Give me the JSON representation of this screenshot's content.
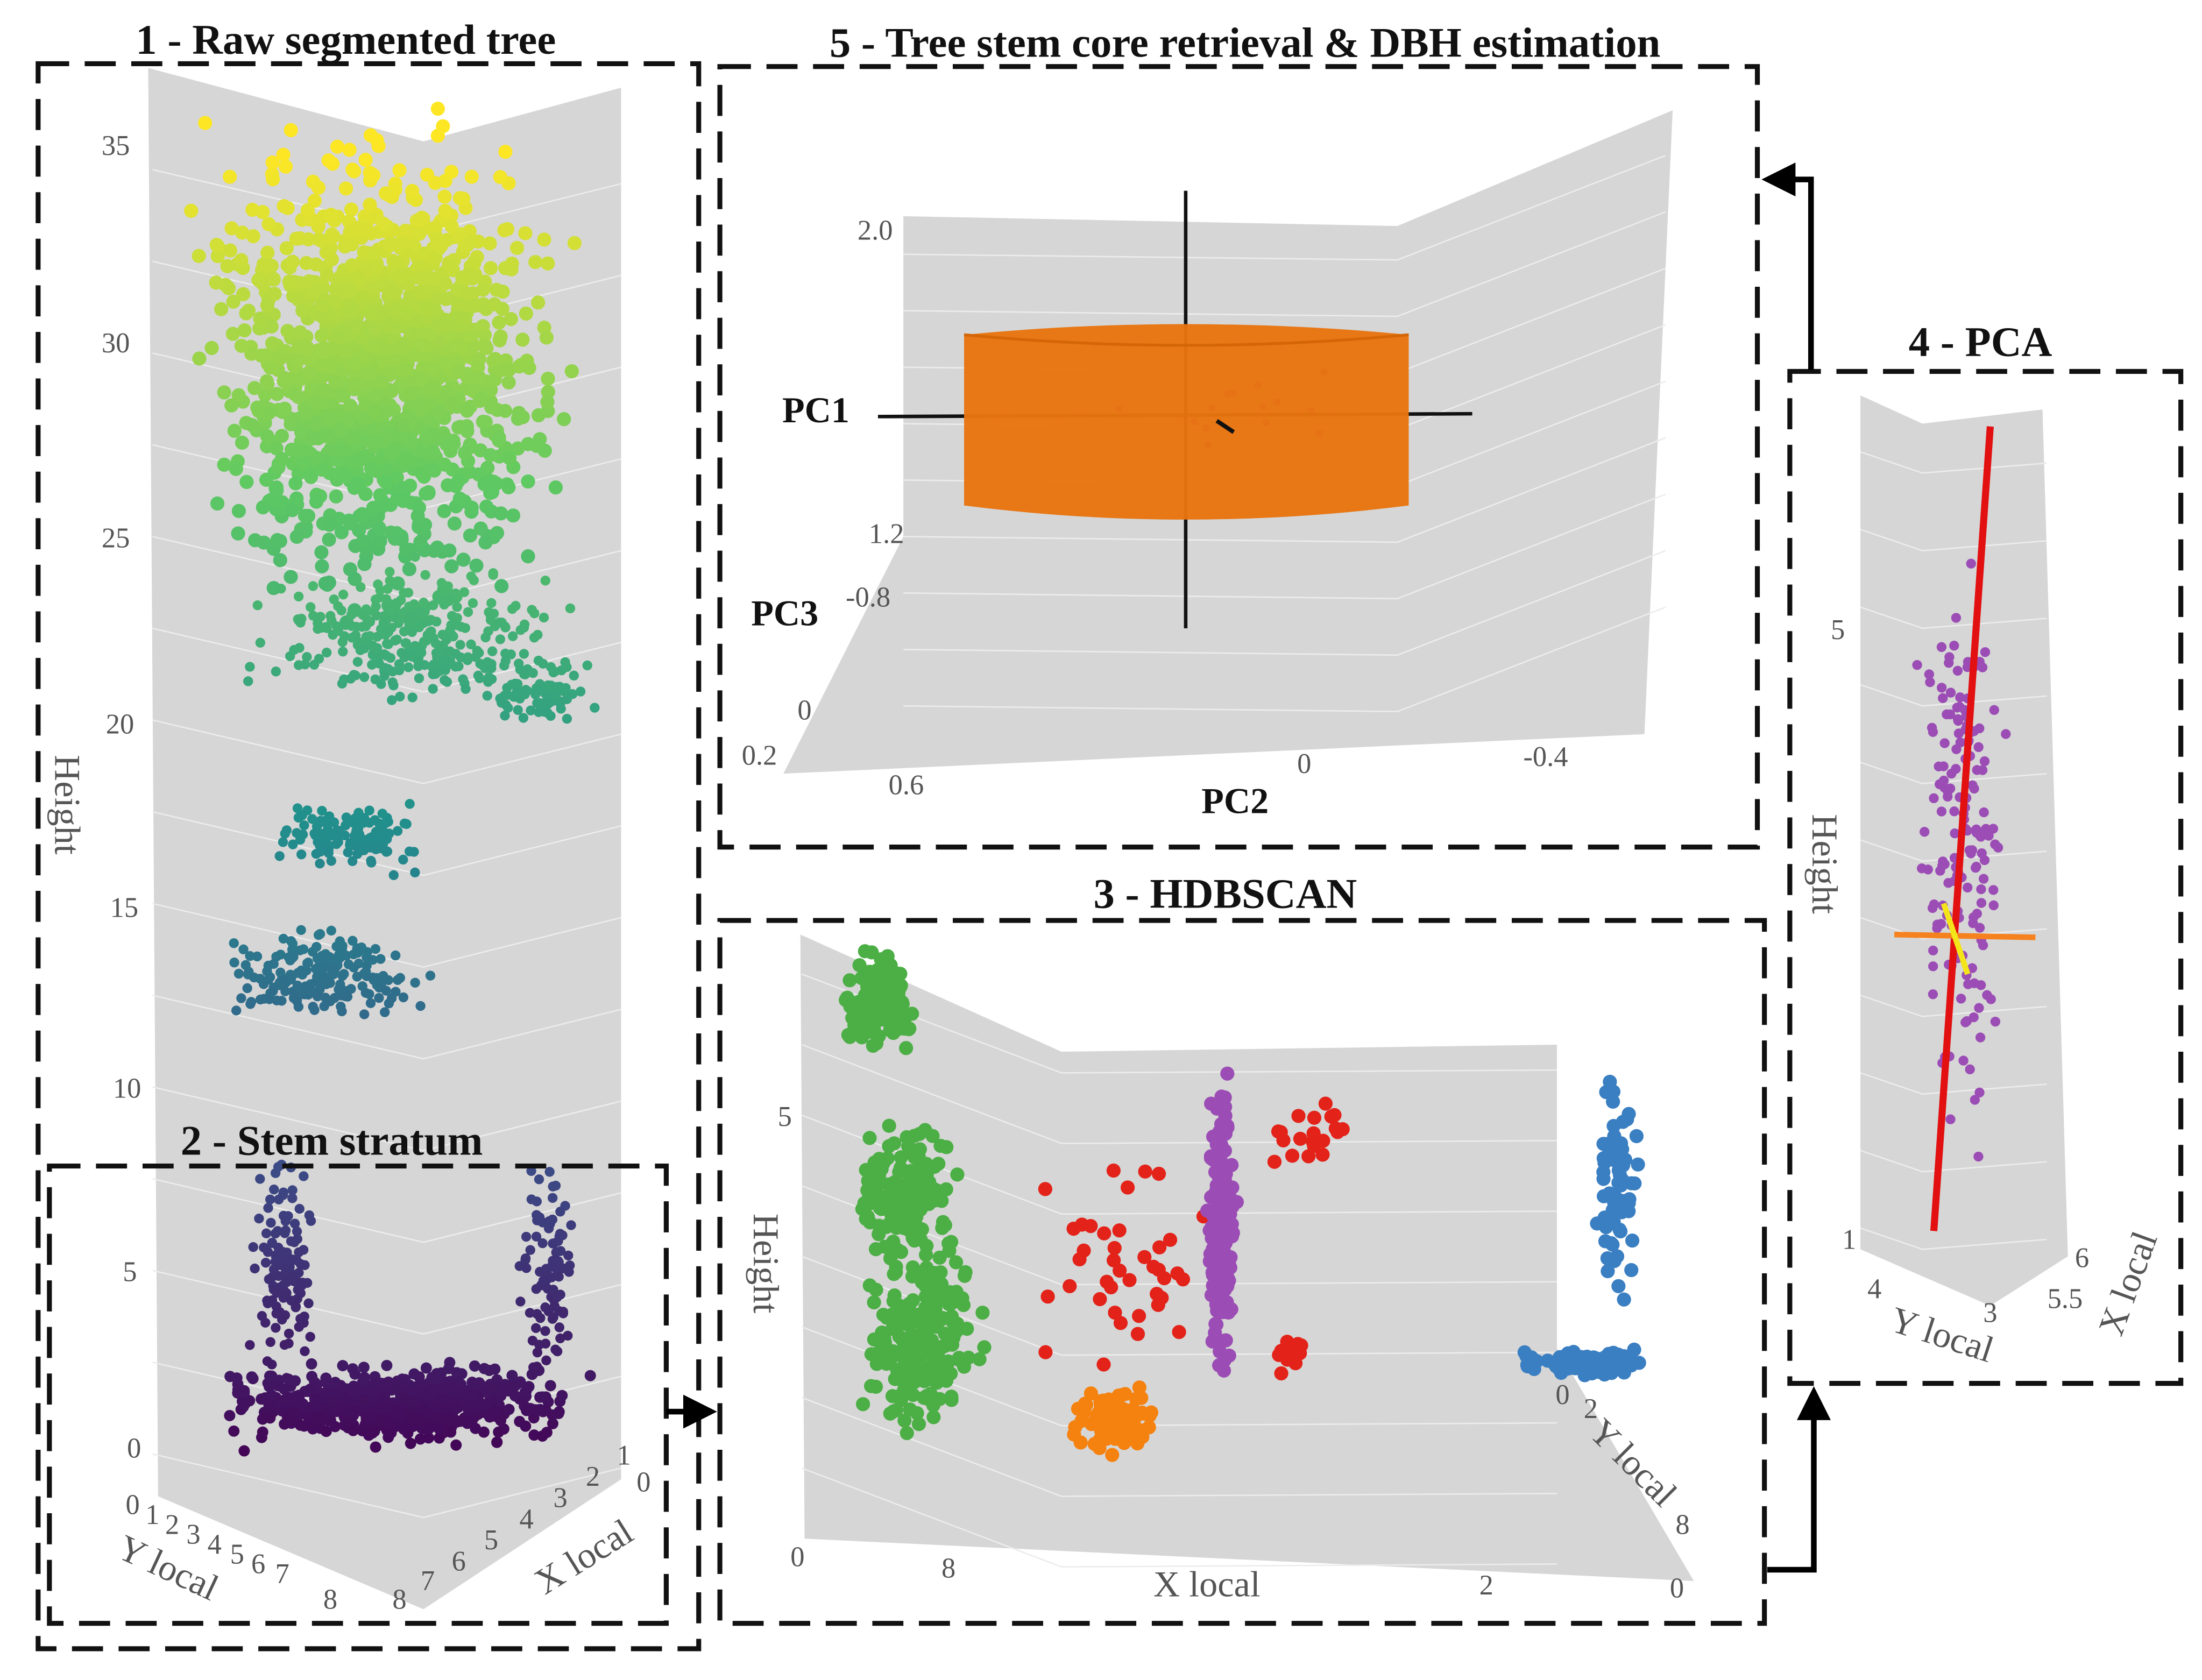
{
  "panels": [
    {
      "title": "1 - Raw segmented tree",
      "ticks": [
        "35",
        "30",
        "25",
        "20",
        "15",
        "10"
      ],
      "axis_labels": [
        "Height"
      ]
    },
    {
      "title": "2 - Stem stratum",
      "ticks": [
        "5",
        "0",
        "0",
        "1",
        "2",
        "3",
        "4",
        "5",
        "6",
        "7",
        "8",
        "8",
        "7",
        "6",
        "5",
        "4",
        "3",
        "2",
        "1",
        "0"
      ],
      "axis_labels": [
        "Y local",
        "X local"
      ]
    },
    {
      "title": "5 - Tree stem core retrieval & DBH estimation",
      "ticks": [
        "2.0",
        "1.2",
        "-0.8",
        "0",
        "0.2",
        "0.6",
        "0",
        "-0.4"
      ],
      "axis_labels": [
        "PC1",
        "PC3",
        "PC2"
      ]
    },
    {
      "title": "3 - HDBSCAN",
      "ticks": [
        "5",
        "0",
        "8",
        "2",
        "0",
        "0",
        "2",
        "8"
      ],
      "axis_labels": [
        "Height",
        "X local",
        "Y local"
      ]
    },
    {
      "title": "4 - PCA",
      "ticks": [
        "5",
        "1",
        "4",
        "3",
        "6",
        "5.5"
      ],
      "axis_labels": [
        "Height",
        "Y local",
        "X local"
      ]
    }
  ]
}
